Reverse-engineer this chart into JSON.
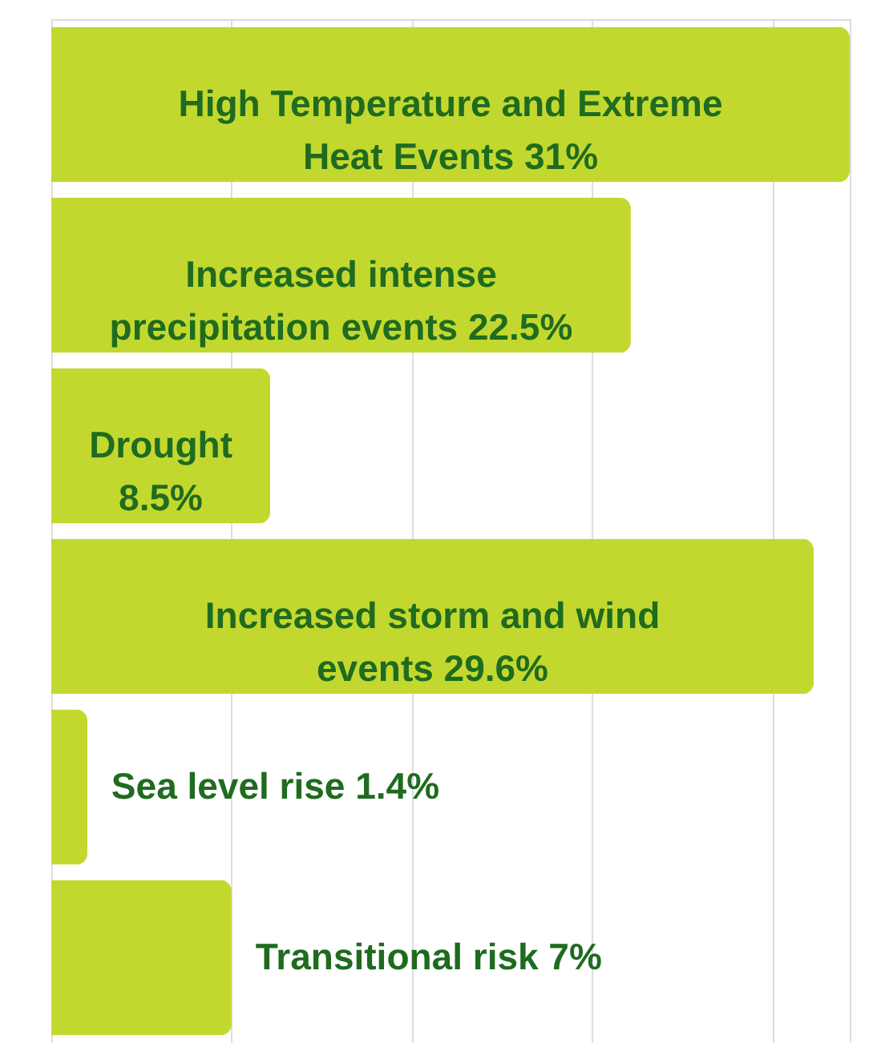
{
  "chart_data": {
    "type": "bar",
    "orientation": "horizontal",
    "categories": [
      "High Temperature and Extreme Heat Events",
      "Increased intense precipitation events",
      "Drought",
      "Increased storm and wind events",
      "Sea level rise",
      "Transitional risk"
    ],
    "values": [
      31,
      22.5,
      8.5,
      29.6,
      1.4,
      7
    ],
    "value_labels": [
      "31%",
      "22.5%",
      "8.5%",
      "29.6%",
      "1.4%",
      "7%"
    ],
    "color": "#c3d82f",
    "xlim": [
      0,
      31
    ],
    "xticks": [
      {
        "value": 7,
        "label": null
      },
      {
        "value": 14,
        "label": null
      },
      {
        "value": 21,
        "label": null
      },
      {
        "value": 28,
        "label": null
      }
    ],
    "grid": "x"
  }
}
